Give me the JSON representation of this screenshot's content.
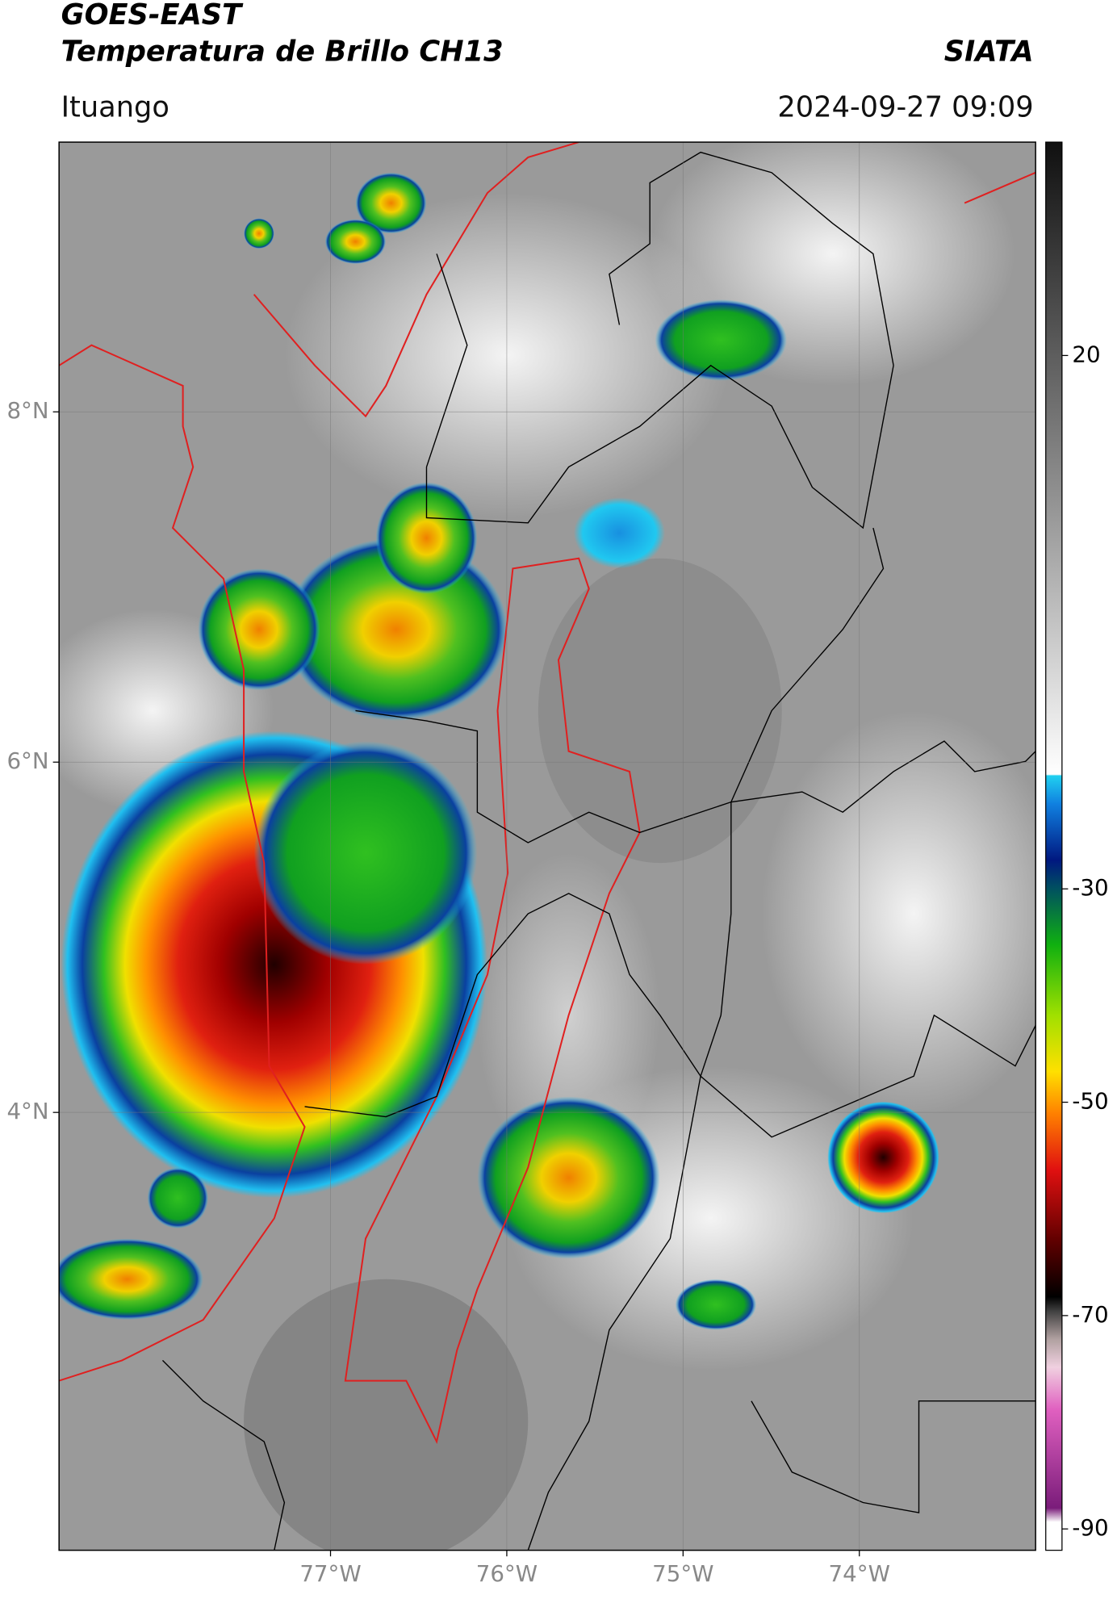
{
  "header": {
    "title_line1": "GOES-EAST",
    "title_line2": "Temperatura de Brillo CH13",
    "agency": "SIATA",
    "location": "Ituango",
    "datetime": "2024-09-27 09:09"
  },
  "map": {
    "xlim": [
      -78.54,
      -73.0
    ],
    "ylim": [
      1.5,
      9.54
    ],
    "xticks": [
      {
        "value": -77,
        "label": "77°W"
      },
      {
        "value": -76,
        "label": "76°W"
      },
      {
        "value": -75,
        "label": "75°W"
      },
      {
        "value": -74,
        "label": "74°W"
      }
    ],
    "yticks": [
      {
        "value": 4,
        "label": "4°N"
      },
      {
        "value": 6,
        "label": "6°N"
      },
      {
        "value": 8,
        "label": "8°N"
      }
    ],
    "grid": true
  },
  "colorbar": {
    "clim": [
      -92,
      40
    ],
    "ticks": [
      -90,
      -70,
      -50,
      -30,
      20
    ]
  }
}
